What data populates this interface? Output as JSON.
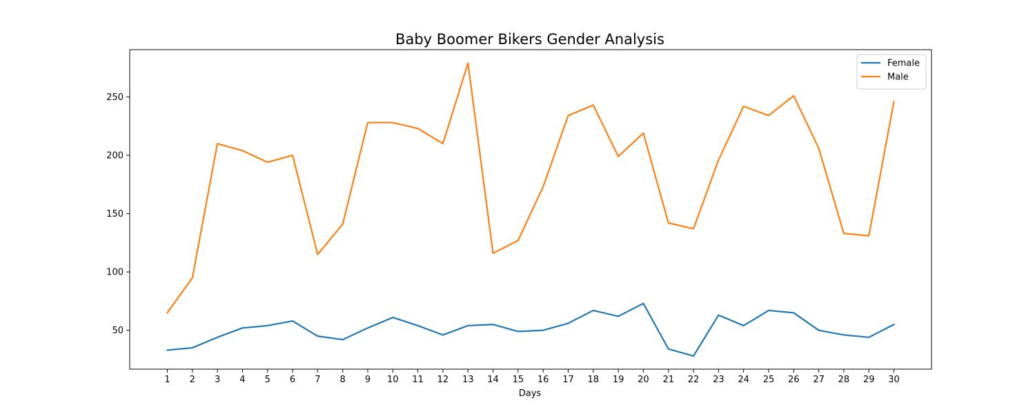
{
  "chart_data": {
    "type": "line",
    "title": "Baby Boomer Bikers Gender Analysis",
    "xlabel": "Days",
    "ylabel": "",
    "x": [
      1,
      2,
      3,
      4,
      5,
      6,
      7,
      8,
      9,
      10,
      11,
      12,
      13,
      14,
      15,
      16,
      17,
      18,
      19,
      20,
      21,
      22,
      23,
      24,
      25,
      26,
      27,
      28,
      29,
      30
    ],
    "x_tick_labels": [
      "1",
      "2",
      "3",
      "4",
      "5",
      "6",
      "7",
      "8",
      "9",
      "10",
      "11",
      "12",
      "13",
      "14",
      "15",
      "16",
      "17",
      "18",
      "19",
      "20",
      "21",
      "22",
      "23",
      "24",
      "25",
      "26",
      "27",
      "28",
      "29",
      "30"
    ],
    "y_ticks": [
      50,
      100,
      150,
      200,
      250
    ],
    "y_tick_labels": [
      "50",
      "100",
      "150",
      "200",
      "250"
    ],
    "xlim": [
      -0.5,
      31.5
    ],
    "ylim": [
      16.7,
      290.5
    ],
    "grid": false,
    "legend_position": "top-right",
    "series": [
      {
        "name": "Female",
        "color": "#1f77b4",
        "values": [
          33,
          35,
          44,
          52,
          54,
          58,
          45,
          42,
          52,
          61,
          54,
          46,
          54,
          55,
          49,
          50,
          56,
          67,
          62,
          73,
          34,
          28,
          63,
          54,
          67,
          65,
          50,
          46,
          44,
          55
        ]
      },
      {
        "name": "Male",
        "color": "#ff7f0e",
        "values": [
          65,
          95,
          210,
          204,
          194,
          200,
          115,
          141,
          228,
          228,
          223,
          210,
          279,
          116,
          127,
          173,
          234,
          243,
          199,
          219,
          142,
          137,
          196,
          242,
          234,
          251,
          206,
          133,
          131,
          246
        ]
      }
    ]
  }
}
